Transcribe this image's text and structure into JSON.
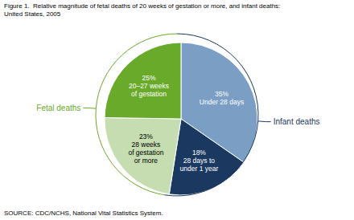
{
  "chart_data": {
    "type": "pie",
    "title": "Figure 1.  Relative magnitude of fetal deaths of 20 weeks of gestation or more, and infant deaths:\nUnited States, 2005",
    "source": "SOURCE: CDC/NCHS, National Vital Statistics System.",
    "categories": [
      "Under 28 days",
      "28 days to\nunder 1 year",
      "28 weeks\nof gestation\nor more",
      "20–27 weeks\nof gestation"
    ],
    "values": [
      35,
      18,
      23,
      25
    ],
    "value_labels": [
      "35%",
      "18%",
      "23%",
      "25%"
    ],
    "colors": [
      "#7a9ec4",
      "#1a3860",
      "#c5ddb0",
      "#6aaa2a"
    ],
    "data_labels": true,
    "annotations": [
      {
        "text": "Infant deaths",
        "color": "#1a3860",
        "categories": [
          "Under 28 days",
          "28 days to\nunder 1 year"
        ]
      },
      {
        "text": "Fetal deaths",
        "color": "#6aaa2a",
        "categories": [
          "28 weeks\nof gestation\nor more",
          "20–27 weeks\nof gestation"
        ]
      }
    ]
  }
}
